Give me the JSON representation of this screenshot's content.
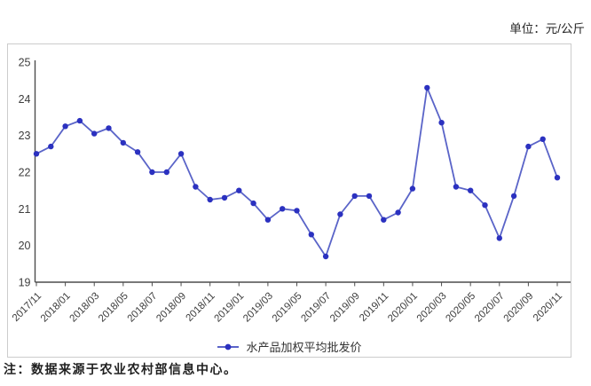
{
  "unit_label": "单位：元/公斤",
  "footnote": "注：数据来源于农业农村部信息中心。",
  "legend": {
    "label": "水产品加权平均批发价"
  },
  "colors": {
    "line": "#5a64c8",
    "marker": "#2b31c0",
    "axis": "#4d4d4d",
    "tick_text": "#3d3d3d",
    "panel_border": "#cccccc"
  },
  "chart_data": {
    "type": "line",
    "title": "",
    "xlabel": "",
    "ylabel": "元/公斤",
    "x": [
      "2017/11",
      "2017/12",
      "2018/01",
      "2018/02",
      "2018/03",
      "2018/04",
      "2018/05",
      "2018/06",
      "2018/07",
      "2018/08",
      "2018/09",
      "2018/10",
      "2018/11",
      "2018/12",
      "2019/01",
      "2019/02",
      "2019/03",
      "2019/04",
      "2019/05",
      "2019/06",
      "2019/07",
      "2019/08",
      "2019/09",
      "2019/10",
      "2019/11",
      "2019/12",
      "2020/01",
      "2020/02",
      "2020/03",
      "2020/04",
      "2020/05",
      "2020/06",
      "2020/07",
      "2020/08",
      "2020/09",
      "2020/10",
      "2020/11"
    ],
    "series": [
      {
        "name": "水产品加权平均批发价",
        "values": [
          22.5,
          22.7,
          23.25,
          23.4,
          23.05,
          23.2,
          22.8,
          22.55,
          22.0,
          22.0,
          22.5,
          21.6,
          21.25,
          21.3,
          21.5,
          21.15,
          20.7,
          21.0,
          20.95,
          20.3,
          19.7,
          20.85,
          21.35,
          21.35,
          20.7,
          20.9,
          21.55,
          24.3,
          23.35,
          21.6,
          21.5,
          21.1,
          20.2,
          21.35,
          22.7,
          22.9,
          21.85
        ]
      }
    ],
    "ylim": [
      19,
      25
    ],
    "y_tick_step": 1,
    "x_label_every": 2,
    "x_label_rotation": -45,
    "grid": false,
    "legend_position": "bottom",
    "line_color": "#5a64c8",
    "marker_color": "#2b31c0",
    "axis_color": "#4d4d4d",
    "text_color": "#3d3d3d"
  }
}
